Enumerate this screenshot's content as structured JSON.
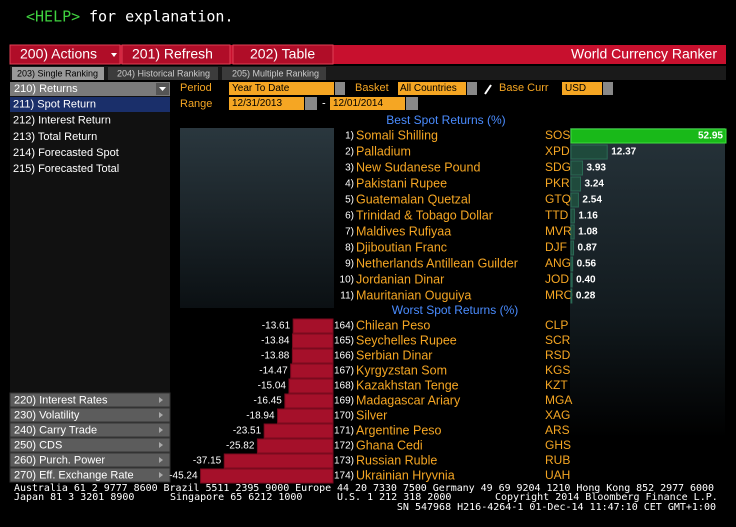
{
  "header": {
    "help_key": "<HELP>",
    "help_text": "for explanation."
  },
  "toolbar": {
    "actions": "200) Actions",
    "refresh": "201) Refresh",
    "table": "202) Table",
    "title": "World Currency Ranker"
  },
  "tabs": [
    "203) Single Ranking",
    "204) Historical Ranking",
    "205) Multiple Ranking"
  ],
  "menu": {
    "header": "210) Returns",
    "items": [
      "211) Spot Return",
      "212) Interest Return",
      "213) Total Return",
      "214) Forecasted Spot",
      "215) Forecasted Total"
    ],
    "bottom": [
      "220) Interest Rates",
      "230) Volatility",
      "240) Carry Trade",
      "250) CDS",
      "260) Purch. Power",
      "270) Eff. Exchange Rate"
    ]
  },
  "controls": {
    "period_label": "Period",
    "period": "Year To Date",
    "basket_label": "Basket",
    "basket": "All Countries",
    "base_label": "Base Curr",
    "base": "USD",
    "range_label": "Range",
    "start": "12/31/2013",
    "range_sep": "-",
    "end": "12/01/2014"
  },
  "best": {
    "title": "Best Spot Returns (%)",
    "rows": [
      {
        "rank": "1)",
        "name": "Somali Shilling",
        "code": "SOS",
        "value": 52.95
      },
      {
        "rank": "2)",
        "name": "Palladium",
        "code": "XPD",
        "value": 12.37
      },
      {
        "rank": "3)",
        "name": "New Sudanese Pound",
        "code": "SDG",
        "value": 3.93
      },
      {
        "rank": "4)",
        "name": "Pakistani Rupee",
        "code": "PKR",
        "value": 3.24
      },
      {
        "rank": "5)",
        "name": "Guatemalan Quetzal",
        "code": "GTQ",
        "value": 2.54
      },
      {
        "rank": "6)",
        "name": "Trinidad & Tobago Dollar",
        "code": "TTD",
        "value": 1.16
      },
      {
        "rank": "7)",
        "name": "Maldives Rufiyaa",
        "code": "MVR",
        "value": 1.08
      },
      {
        "rank": "8)",
        "name": "Djiboutian Franc",
        "code": "DJF",
        "value": 0.87
      },
      {
        "rank": "9)",
        "name": "Netherlands Antillean Guilder",
        "code": "ANG",
        "value": 0.56
      },
      {
        "rank": "10)",
        "name": "Jordanian Dinar",
        "code": "JOD",
        "value": 0.4,
        "value_label": "0.40"
      },
      {
        "rank": "11)",
        "name": "Mauritanian Ouguiya",
        "code": "MRO",
        "value": 0.28
      }
    ]
  },
  "worst": {
    "title": "Worst Spot Returns (%)",
    "rows": [
      {
        "rank": "164)",
        "name": "Chilean Peso",
        "code": "CLP",
        "value": -13.61
      },
      {
        "rank": "165)",
        "name": "Seychelles Rupee",
        "code": "SCR",
        "value": -13.84
      },
      {
        "rank": "166)",
        "name": "Serbian Dinar",
        "code": "RSD",
        "value": -13.88
      },
      {
        "rank": "167)",
        "name": "Kyrgyzstan Som",
        "code": "KGS",
        "value": -14.47
      },
      {
        "rank": "168)",
        "name": "Kazakhstan Tenge",
        "code": "KZT",
        "value": -15.04
      },
      {
        "rank": "169)",
        "name": "Madagascar Ariary",
        "code": "MGA",
        "value": -16.45
      },
      {
        "rank": "170)",
        "name": "Silver",
        "code": "XAG",
        "value": -18.94
      },
      {
        "rank": "171)",
        "name": "Argentine Peso",
        "code": "ARS",
        "value": -23.51
      },
      {
        "rank": "172)",
        "name": "Ghana Cedi",
        "code": "GHS",
        "value": -25.82
      },
      {
        "rank": "173)",
        "name": "Russian Ruble",
        "code": "RUB",
        "value": -37.15
      },
      {
        "rank": "174)",
        "name": "Ukrainian Hryvnia",
        "code": "UAH",
        "value": -45.24
      }
    ]
  },
  "footer": {
    "line1": "Australia 61 2 9777 8600 Brazil 5511 2395 9000 Europe 44 20 7330 7500 Germany 49 69 9204 1210 Hong Kong 852 2977 6000",
    "japan": "Japan 81 3 3201 8900",
    "singapore": "Singapore 65 6212 1000",
    "us": "U.S. 1 212 318 2000",
    "copyright": "Copyright 2014 Bloomberg Finance L.P.",
    "session": "SN 547968 H216-4264-1 01-Dec-14 11:47:10 CET  GMT+1:00"
  }
}
